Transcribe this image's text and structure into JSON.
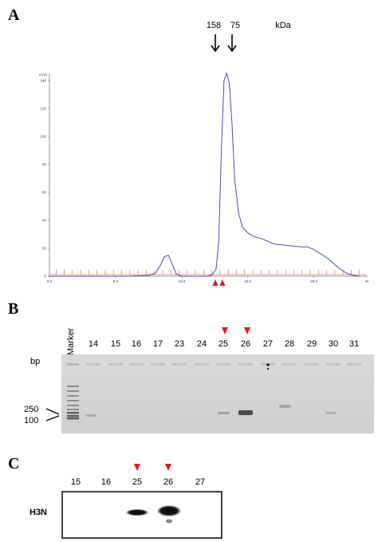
{
  "panel_a": {
    "letter": "A",
    "markers": [
      {
        "label": "158"
      },
      {
        "label": "75"
      }
    ],
    "unit": "kDa",
    "y_axis_unit": "mAU",
    "y_ticks": [
      "140",
      "120",
      "100",
      "80",
      "60",
      "40",
      "20",
      "0"
    ],
    "x_ticks": [
      "0.0",
      "5.0",
      "10.0",
      "15.0",
      "20.0",
      "ml"
    ]
  },
  "panel_b": {
    "letter": "B",
    "marker_label": "Marker",
    "lanes": [
      "14",
      "15",
      "16",
      "17",
      "23",
      "24",
      "25",
      "26",
      "27",
      "28",
      "29",
      "30",
      "31"
    ],
    "highlighted_lanes": [
      "25",
      "26"
    ],
    "bp_label": "bp",
    "size_labels": [
      "250",
      "100"
    ]
  },
  "panel_c": {
    "letter": "C",
    "lanes": [
      "15",
      "16",
      "25",
      "26",
      "27"
    ],
    "highlighted_lanes": [
      "25",
      "26"
    ],
    "protein_label": "H3N"
  },
  "colors": {
    "trace": "#4a4ab8",
    "fraction_marks": "#d04040",
    "arrowhead": "#e01820"
  },
  "chart_data": {
    "type": "line",
    "title": "",
    "xlabel": "ml",
    "ylabel": "mAU",
    "xlim": [
      0,
      24
    ],
    "ylim": [
      0,
      145
    ],
    "x": [
      0.0,
      2.0,
      4.0,
      6.0,
      7.5,
      8.0,
      8.4,
      8.7,
      9.0,
      9.3,
      9.6,
      10.0,
      10.5,
      11.0,
      11.5,
      12.0,
      12.3,
      12.6,
      12.8,
      13.0,
      13.2,
      13.4,
      13.6,
      13.8,
      14.0,
      14.3,
      14.6,
      15.0,
      15.3,
      15.6,
      16.0,
      17.0,
      18.0,
      18.5,
      19.0,
      19.5,
      20.0,
      20.5,
      21.0,
      21.5,
      22.0,
      22.5,
      23.0,
      23.5
    ],
    "series": [
      {
        "values": [
          0,
          0,
          0,
          0,
          0.5,
          2,
          8,
          14,
          15,
          8,
          1.5,
          0,
          0,
          0,
          0,
          0,
          1,
          5,
          25,
          90,
          140,
          145,
          138,
          110,
          70,
          45,
          35,
          31,
          29,
          28,
          27,
          23,
          22,
          21.5,
          21,
          21,
          19,
          16,
          13,
          9,
          5,
          2,
          0.5,
          0
        ]
      }
    ]
  }
}
